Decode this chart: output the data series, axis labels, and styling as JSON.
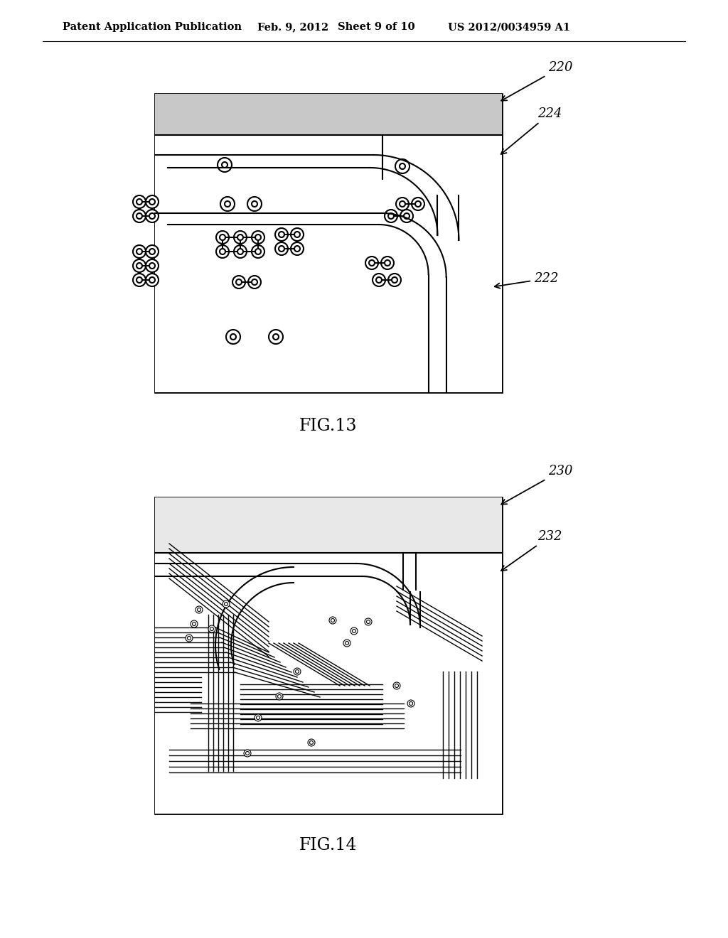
{
  "bg_color": "#ffffff",
  "header_text": "Patent Application Publication",
  "header_date": "Feb. 9, 2012",
  "header_sheet": "Sheet 9 of 10",
  "header_patent": "US 2012/0034959 A1",
  "fig13_label": "FIG.13",
  "fig14_label": "FIG.14",
  "label_220": "220",
  "label_222": "222",
  "label_224": "224",
  "label_230": "230",
  "label_232": "232",
  "line_color": "#000000",
  "lw_main": 2.0,
  "lw_inner": 1.5,
  "lw_thin": 1.0
}
